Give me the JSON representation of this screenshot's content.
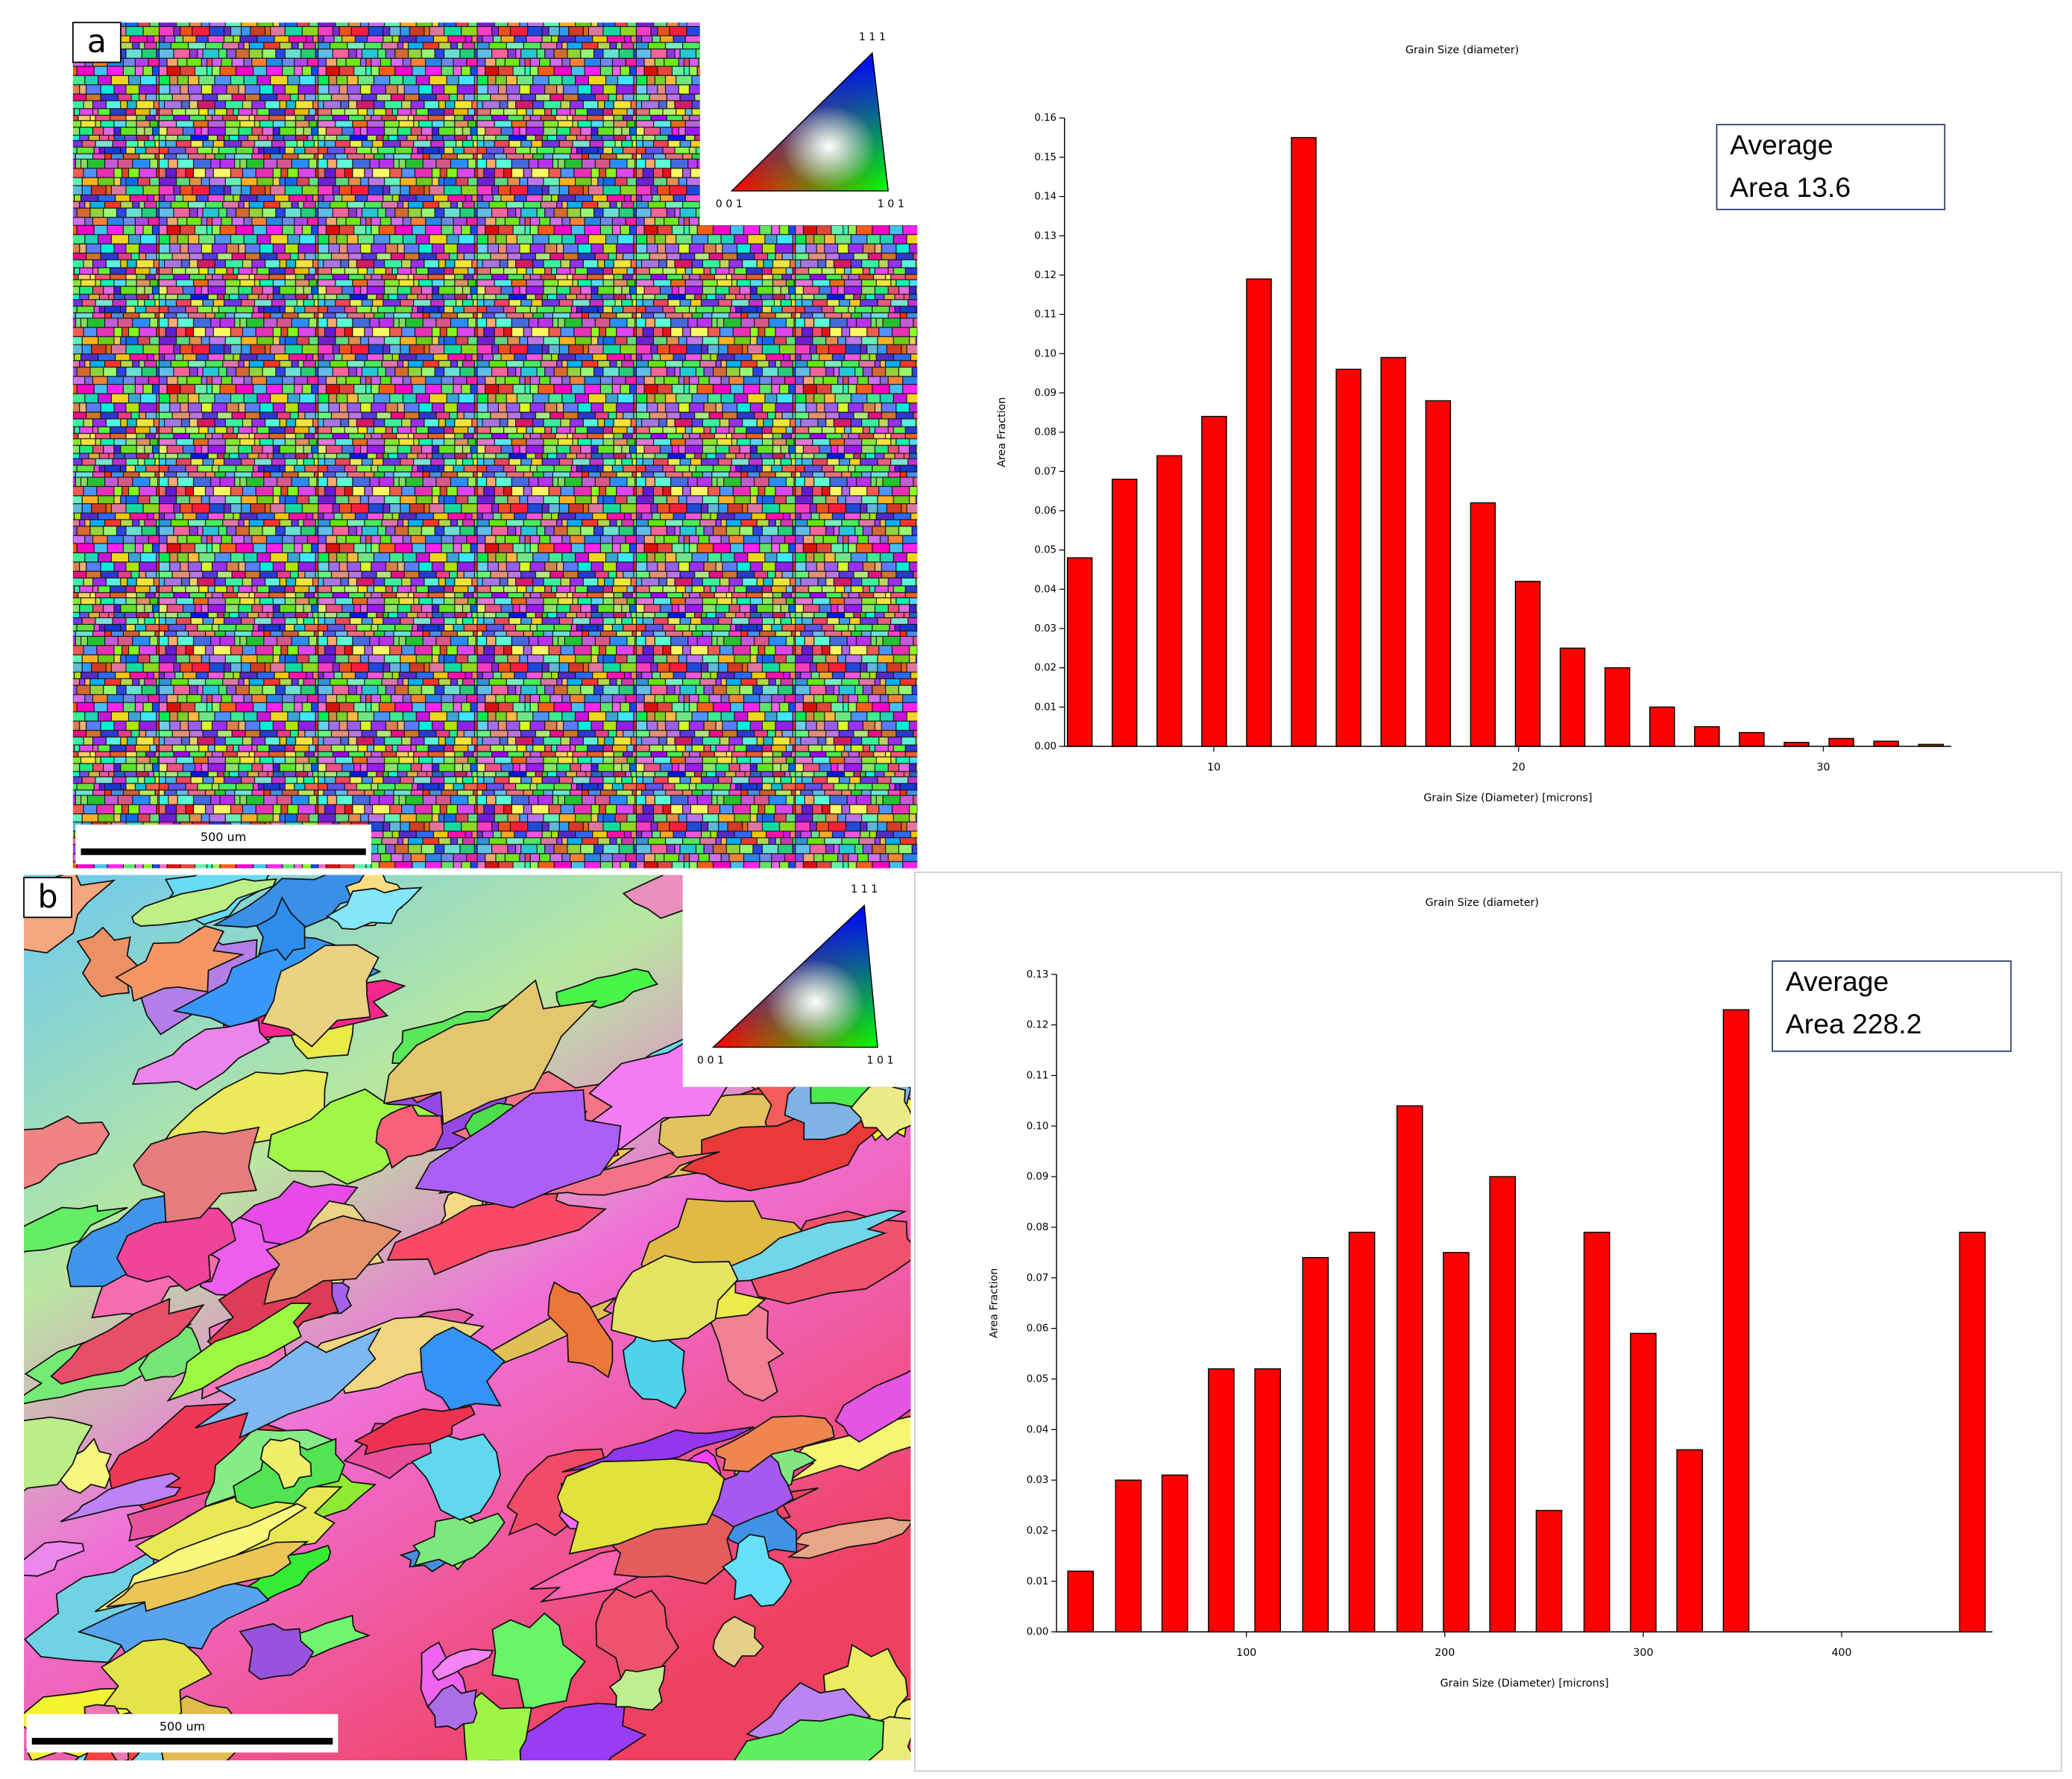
{
  "panels": [
    {
      "label": "a",
      "scale_bar": "500 um",
      "ipf": {
        "top": "1 1 1",
        "left": "0 0 1",
        "right": "1 0 1"
      }
    },
    {
      "label": "b",
      "scale_bar": "500 um",
      "ipf": {
        "top": "1 1 1",
        "left": "0 0 1",
        "right": "1 0 1"
      }
    }
  ],
  "chart_data": [
    {
      "type": "bar",
      "title": "Grain Size (diameter)",
      "x_label": "Grain Size (Diameter) [microns]",
      "y_label": "Area Fraction",
      "annotation": [
        "Average",
        "Area 13.6"
      ],
      "color": "#ff0000",
      "x": [
        5.6,
        7.07,
        8.54,
        10.01,
        11.48,
        12.95,
        14.42,
        15.89,
        17.36,
        18.83,
        20.3,
        21.77,
        23.24,
        24.71,
        26.18,
        27.65,
        29.12,
        30.59,
        32.06,
        33.53
      ],
      "values": [
        0.048,
        0.068,
        0.074,
        0.084,
        0.119,
        0.155,
        0.096,
        0.099,
        0.088,
        0.062,
        0.042,
        0.025,
        0.02,
        0.01,
        0.005,
        0.0035,
        0.001,
        0.002,
        0.0013,
        0.0005
      ],
      "xlim": [
        5.1,
        34.2
      ],
      "xticks": [
        10,
        20,
        30
      ],
      "ylim": [
        0,
        0.16
      ],
      "yticks": [
        {
          "value": 0,
          "label": "0.00"
        },
        {
          "value": 0.01,
          "label": "0.01"
        },
        {
          "value": 0.02,
          "label": "0.02"
        },
        {
          "value": 0.03,
          "label": "0.03"
        },
        {
          "value": 0.04,
          "label": "0.04"
        },
        {
          "value": 0.05,
          "label": "0.05"
        },
        {
          "value": 0.06,
          "label": "0.06"
        },
        {
          "value": 0.07,
          "label": "0.07"
        },
        {
          "value": 0.08,
          "label": "0.08"
        },
        {
          "value": 0.09,
          "label": "0.09"
        },
        {
          "value": 0.1,
          "label": "0.10"
        },
        {
          "value": 0.11,
          "label": "0.11"
        },
        {
          "value": 0.12,
          "label": "0.12"
        },
        {
          "value": 0.13,
          "label": "0.13"
        },
        {
          "value": 0.14,
          "label": "0.14"
        },
        {
          "value": 0.15,
          "label": "0.15"
        },
        {
          "value": 0.16,
          "label": "0.16"
        }
      ]
    },
    {
      "type": "bar",
      "title": "Grain Size (diameter)",
      "x_label": "Grain Size (Diameter) [microns]",
      "y_label": "Area Fraction",
      "annotation": [
        "Average",
        "Area 228.2"
      ],
      "color": "#ff0000",
      "x": [
        16.4,
        40.5,
        63.9,
        87.3,
        110.7,
        134.8,
        158.2,
        182.3,
        205.7,
        229.1,
        252.5,
        276.6,
        300,
        323.4,
        346.8,
        465.9
      ],
      "values": [
        0.012,
        0.03,
        0.031,
        0.052,
        0.052,
        0.074,
        0.079,
        0.104,
        0.075,
        0.09,
        0.024,
        0.079,
        0.059,
        0.036,
        0.123,
        0.079
      ],
      "xlim": [
        4.3,
        476
      ],
      "xticks": [
        100,
        200,
        300,
        400
      ],
      "ylim": [
        0,
        0.13
      ],
      "yticks": [
        {
          "value": 0,
          "label": "0.00"
        },
        {
          "value": 0.01,
          "label": "0.01"
        },
        {
          "value": 0.02,
          "label": "0.02"
        },
        {
          "value": 0.03,
          "label": "0.03"
        },
        {
          "value": 0.04,
          "label": "0.04"
        },
        {
          "value": 0.05,
          "label": "0.05"
        },
        {
          "value": 0.06,
          "label": "0.06"
        },
        {
          "value": 0.07,
          "label": "0.07"
        },
        {
          "value": 0.08,
          "label": "0.08"
        },
        {
          "value": 0.09,
          "label": "0.09"
        },
        {
          "value": 0.1,
          "label": "0.10"
        },
        {
          "value": 0.11,
          "label": "0.11"
        },
        {
          "value": 0.12,
          "label": "0.12"
        },
        {
          "value": 0.13,
          "label": "0.13"
        }
      ]
    }
  ]
}
